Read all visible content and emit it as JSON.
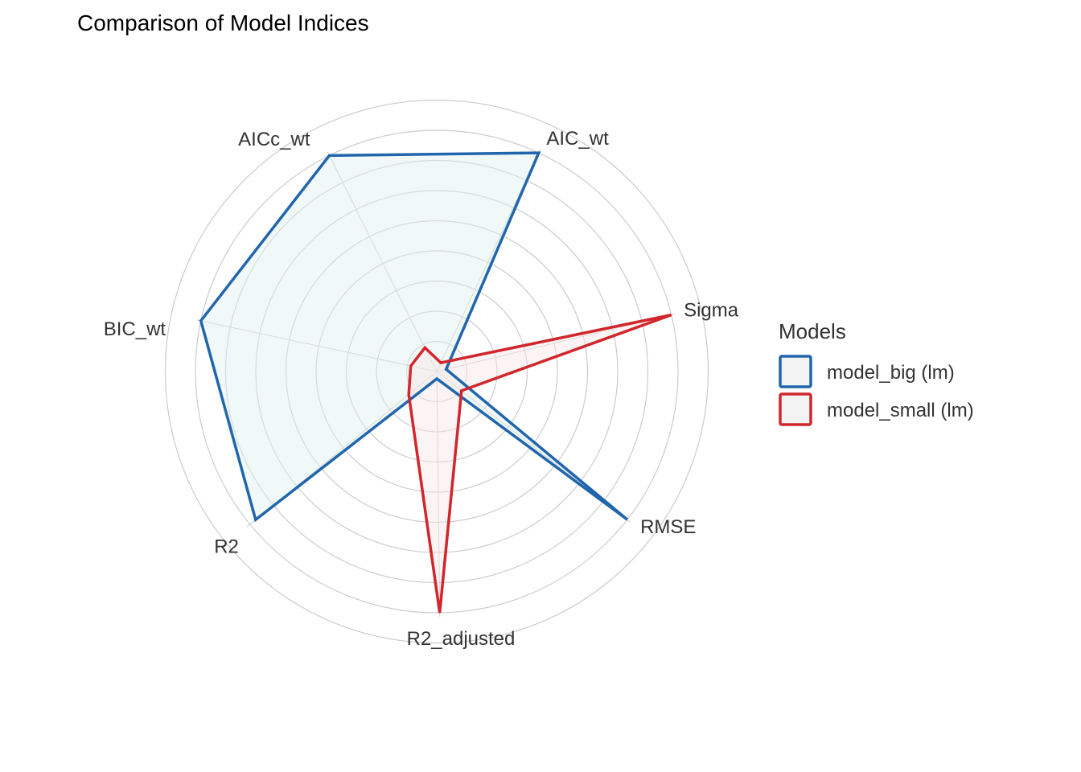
{
  "chart_data": {
    "type": "radar",
    "title": "Comparison of Model Indices",
    "axes": [
      "AIC_wt",
      "AICc_wt",
      "BIC_wt",
      "R2",
      "R2_adjusted",
      "RMSE",
      "Sigma"
    ],
    "rlim": [
      0,
      1
    ],
    "grid": true,
    "legend": {
      "title": "Models",
      "position": "right"
    },
    "series": [
      {
        "name": "model_big (lm)",
        "color": "#2166ac",
        "fill": "#dff0f0",
        "values": [
          1.0,
          1.0,
          1.0,
          0.97,
          0.03,
          1.0,
          0.04
        ]
      },
      {
        "name": "model_small (lm)",
        "color": "#d1262b",
        "fill": "#f8e7e7",
        "values": [
          0.04,
          0.11,
          0.11,
          0.15,
          1.0,
          0.13,
          1.0
        ]
      }
    ]
  }
}
